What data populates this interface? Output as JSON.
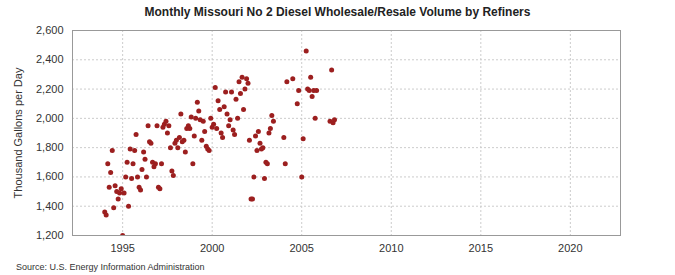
{
  "chart_data": {
    "type": "scatter",
    "title": "Monthly Missouri No 2 Diesel Wholesale/Resale Volume by Refiners",
    "y_label": "Thousand Gallons per Day",
    "caption": "Source: U.S. Energy Information Administration",
    "color": "#9c1f1f",
    "marker": "circle",
    "grid": true,
    "xlim": [
      1992.2,
      2022.8
    ],
    "xticks": [
      1995,
      2000,
      2005,
      2010,
      2015,
      2020
    ],
    "ylim": [
      1200,
      2600
    ],
    "yticks": [
      {
        "value": 1200,
        "label": "1,200"
      },
      {
        "value": 1400,
        "label": "1,400"
      },
      {
        "value": 1600,
        "label": "1,600"
      },
      {
        "value": 1800,
        "label": "1,800"
      },
      {
        "value": 2000,
        "label": "2,000"
      },
      {
        "value": 2200,
        "label": "2,200"
      },
      {
        "value": 2400,
        "label": "2,400"
      },
      {
        "value": 2600,
        "label": "2,600"
      }
    ],
    "x": [
      1994.0,
      1994.08,
      1994.17,
      1994.25,
      1994.33,
      1994.42,
      1994.5,
      1994.58,
      1994.67,
      1994.75,
      1994.83,
      1994.92,
      1995.0,
      1995.08,
      1995.17,
      1995.25,
      1995.33,
      1995.42,
      1995.5,
      1995.58,
      1995.67,
      1995.75,
      1995.83,
      1995.92,
      1996.0,
      1996.08,
      1996.17,
      1996.25,
      1996.33,
      1996.42,
      1996.5,
      1996.58,
      1996.67,
      1996.75,
      1996.83,
      1996.92,
      1997.0,
      1997.08,
      1997.17,
      1997.25,
      1997.33,
      1997.42,
      1997.5,
      1997.58,
      1997.67,
      1997.75,
      1997.83,
      1997.92,
      1998.0,
      1998.08,
      1998.17,
      1998.25,
      1998.33,
      1998.42,
      1998.5,
      1998.58,
      1998.67,
      1998.75,
      1998.83,
      1998.92,
      1999.0,
      1999.08,
      1999.17,
      1999.25,
      1999.33,
      1999.42,
      1999.5,
      1999.58,
      1999.67,
      1999.75,
      1999.83,
      1999.92,
      2000.0,
      2000.08,
      2000.17,
      2000.25,
      2000.33,
      2000.42,
      2000.5,
      2000.58,
      2000.67,
      2000.75,
      2000.83,
      2000.92,
      2001.0,
      2001.08,
      2001.17,
      2001.25,
      2001.33,
      2001.42,
      2001.5,
      2001.58,
      2001.67,
      2001.75,
      2001.83,
      2001.92,
      2002.0,
      2002.08,
      2002.17,
      2002.25,
      2002.33,
      2002.42,
      2002.5,
      2002.58,
      2002.67,
      2002.75,
      2002.83,
      2002.92,
      2003.0,
      2003.08,
      2003.17,
      2003.25,
      2003.33,
      2003.42,
      2004.0,
      2004.08,
      2004.17,
      2004.5,
      2004.75,
      2004.83,
      2005.0,
      2005.08,
      2005.25,
      2005.33,
      2005.42,
      2005.5,
      2005.58,
      2005.67,
      2005.75,
      2005.83,
      2006.58,
      2006.67,
      2006.75,
      2006.83
    ],
    "values": [
      1360,
      1340,
      1690,
      1530,
      1630,
      1780,
      1390,
      1540,
      1500,
      1450,
      1490,
      1520,
      1200,
      1490,
      1600,
      1700,
      1400,
      1790,
      1590,
      1690,
      1780,
      1890,
      1600,
      1530,
      1510,
      1650,
      1770,
      1720,
      1600,
      1950,
      1840,
      1830,
      1700,
      1670,
      1690,
      1950,
      1530,
      1520,
      1690,
      1940,
      1960,
      1980,
      1900,
      1950,
      1800,
      1640,
      1610,
      1830,
      1850,
      1800,
      1870,
      2030,
      1840,
      1850,
      1770,
      1930,
      1950,
      1930,
      2010,
      1690,
      1880,
      2000,
      2110,
      2050,
      1990,
      1850,
      1980,
      1910,
      1810,
      1790,
      1780,
      2000,
      1940,
      1960,
      2210,
      1930,
      2120,
      2060,
      1900,
      1870,
      2080,
      2180,
      2030,
      1950,
      1990,
      2180,
      1920,
      1890,
      2130,
      2000,
      2250,
      2170,
      2280,
      2060,
      2200,
      2270,
      2240,
      1850,
      1450,
      1450,
      1600,
      1880,
      1780,
      1910,
      1830,
      1790,
      1800,
      1590,
      1700,
      1690,
      1900,
      1930,
      2020,
      1980,
      1870,
      1690,
      2250,
      2270,
      2100,
      2190,
      1600,
      1860,
      2460,
      2200,
      2190,
      2280,
      2150,
      2190,
      2000,
      2190,
      1980,
      2330,
      1970,
      1990
    ]
  }
}
